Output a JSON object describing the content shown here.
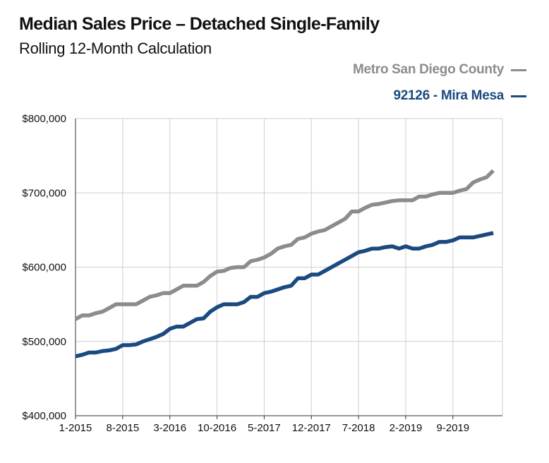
{
  "header": {
    "title": "Median Sales Price – Detached Single-Family",
    "subtitle": "Rolling 12-Month Calculation"
  },
  "legend": [
    {
      "label": "Metro San Diego County",
      "color": "#8c8c8c"
    },
    {
      "label": "92126 - Mira Mesa",
      "color": "#1a4a80"
    }
  ],
  "chart_data": {
    "type": "line",
    "title": "Median Sales Price – Detached Single-Family",
    "subtitle": "Rolling 12-Month Calculation",
    "xlabel": "",
    "ylabel": "",
    "ylim": [
      400000,
      800000
    ],
    "yticks": [
      400000,
      500000,
      600000,
      700000,
      800000
    ],
    "ytick_labels": [
      "$400,000",
      "$500,000",
      "$600,000",
      "$700,000",
      "$800,000"
    ],
    "xtick_labels": [
      "1-2015",
      "8-2015",
      "3-2016",
      "10-2016",
      "5-2017",
      "12-2017",
      "7-2018",
      "2-2019",
      "9-2019"
    ],
    "x_start": "1-2015",
    "x_end": "3-2020",
    "grid": true,
    "legend_position": "top-right",
    "series": [
      {
        "name": "Metro San Diego County",
        "color": "#8c8c8c",
        "values": [
          530000,
          535000,
          535000,
          538000,
          540000,
          545000,
          550000,
          550000,
          550000,
          550000,
          555000,
          560000,
          562000,
          565000,
          565000,
          570000,
          575000,
          575000,
          575000,
          580000,
          588000,
          594000,
          595000,
          599000,
          600000,
          600000,
          608000,
          610000,
          613000,
          618000,
          625000,
          628000,
          630000,
          638000,
          640000,
          645000,
          648000,
          650000,
          655000,
          660000,
          665000,
          675000,
          675000,
          680000,
          684000,
          685000,
          687000,
          689000,
          690000,
          690000,
          690000,
          695000,
          695000,
          698000,
          700000,
          700000,
          700000,
          703000,
          705000,
          714000,
          718000,
          721000,
          730000
        ]
      },
      {
        "name": "92126 - Mira Mesa",
        "color": "#1a4a80",
        "values": [
          480000,
          482000,
          485000,
          485000,
          487000,
          488000,
          490000,
          495000,
          495000,
          496000,
          500000,
          503000,
          506000,
          510000,
          517000,
          520000,
          520000,
          525000,
          530000,
          531000,
          540000,
          546000,
          550000,
          550000,
          550000,
          553000,
          560000,
          560000,
          565000,
          567000,
          570000,
          573000,
          575000,
          585000,
          585000,
          590000,
          590000,
          595000,
          600000,
          605000,
          610000,
          615000,
          620000,
          622000,
          625000,
          625000,
          627000,
          628000,
          625000,
          628000,
          625000,
          625000,
          628000,
          630000,
          634000,
          634000,
          636000,
          640000,
          640000,
          640000,
          642000,
          644000,
          646000
        ]
      }
    ]
  }
}
